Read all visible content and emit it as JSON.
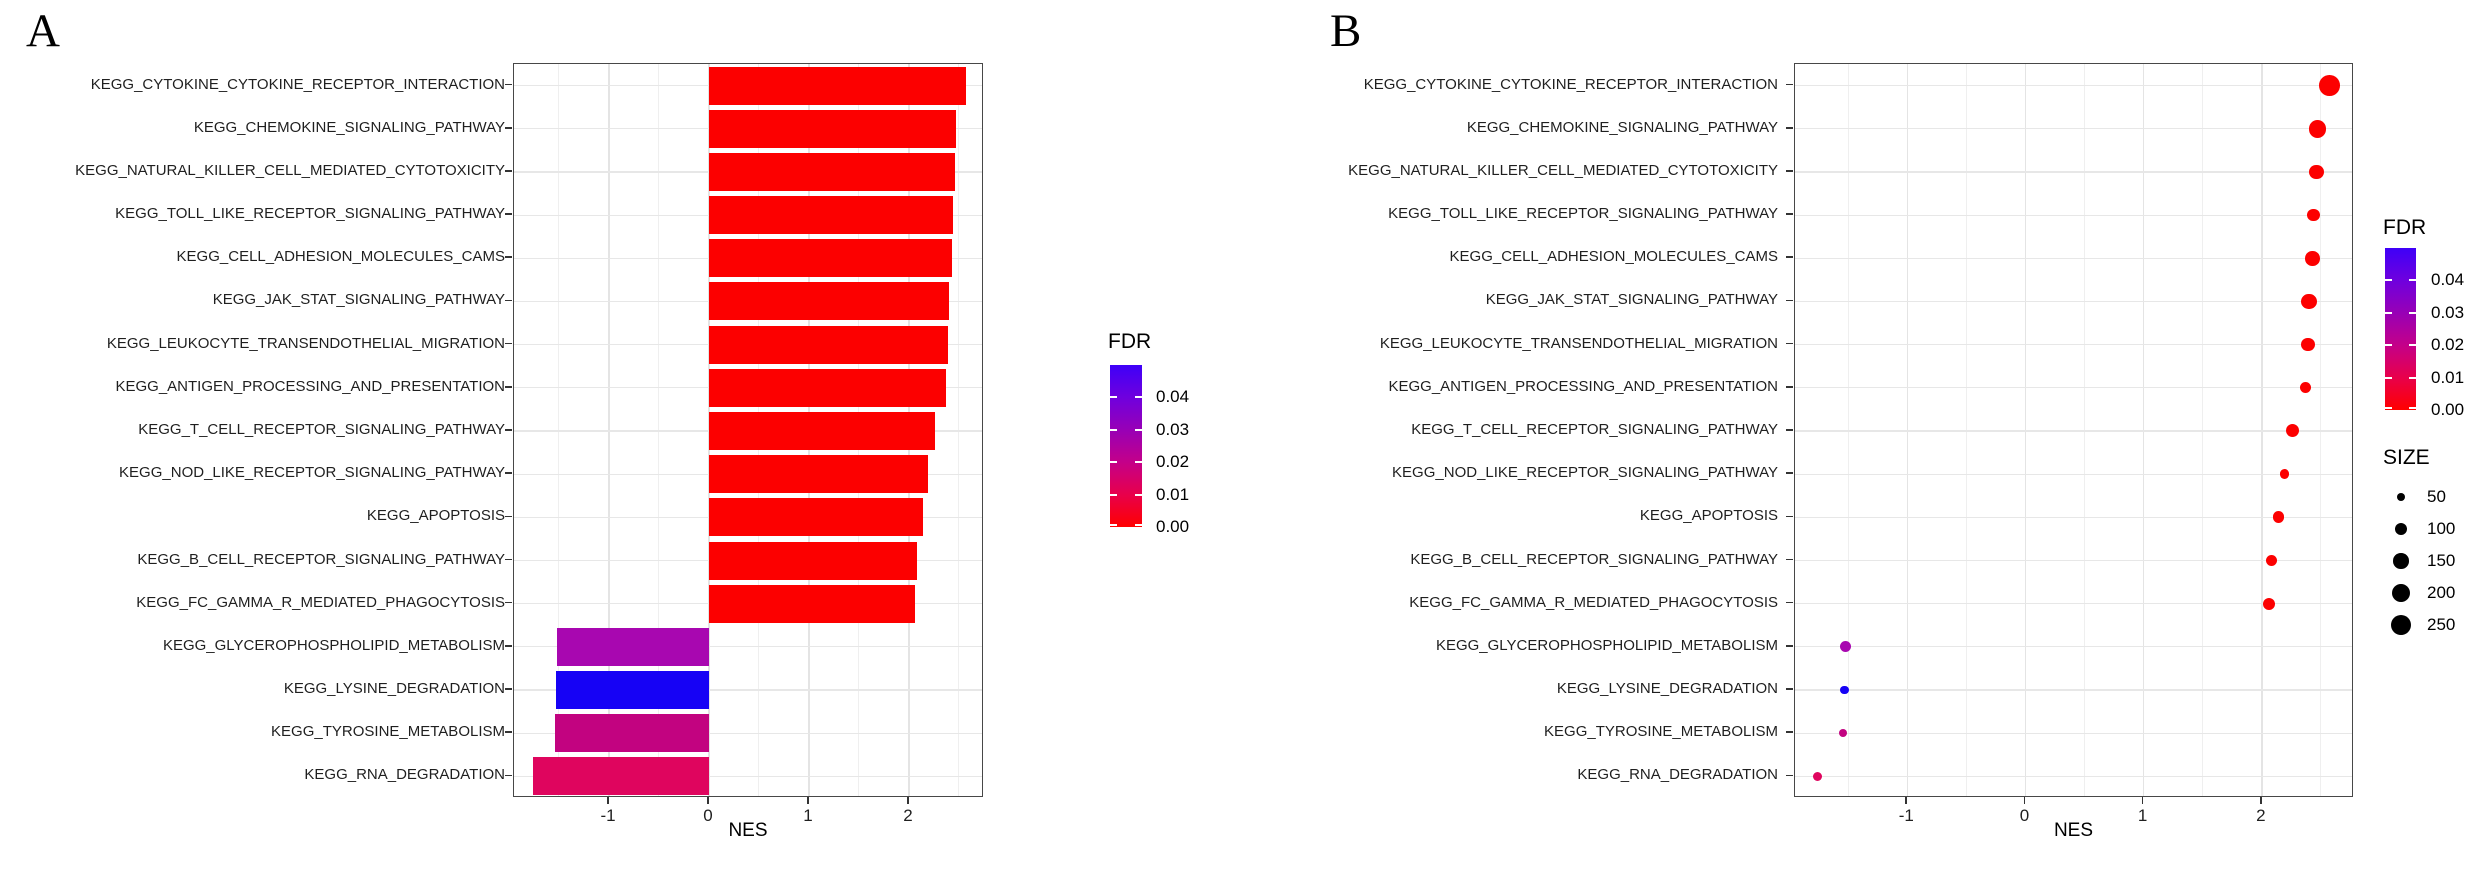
{
  "panels": {
    "A": {
      "letter": "A"
    },
    "B": {
      "letter": "B"
    }
  },
  "colors": {
    "positive_red": "#fc0000",
    "grid_major": "#e4e4e4",
    "grid_minor": "#efefef",
    "panel_border": "#474747",
    "legend_dot_black": "#000000"
  },
  "chart_data": [
    {
      "type": "bar",
      "panel": "A",
      "orientation": "horizontal",
      "title": "",
      "xlabel": "NES",
      "ylabel": "",
      "xlim": [
        -1.95,
        2.75
      ],
      "grid": true,
      "xticks": [
        {
          "label": "-1",
          "value": -1
        },
        {
          "label": "0",
          "value": 0
        },
        {
          "label": "1",
          "value": 1
        },
        {
          "label": "2",
          "value": 2
        }
      ],
      "categories": [
        "KEGG_CYTOKINE_CYTOKINE_RECEPTOR_INTERACTION",
        "KEGG_CHEMOKINE_SIGNALING_PATHWAY",
        "KEGG_NATURAL_KILLER_CELL_MEDIATED_CYTOTOXICITY",
        "KEGG_TOLL_LIKE_RECEPTOR_SIGNALING_PATHWAY",
        "KEGG_CELL_ADHESION_MOLECULES_CAMS",
        "KEGG_JAK_STAT_SIGNALING_PATHWAY",
        "KEGG_LEUKOCYTE_TRANSENDOTHELIAL_MIGRATION",
        "KEGG_ANTIGEN_PROCESSING_AND_PRESENTATION",
        "KEGG_T_CELL_RECEPTOR_SIGNALING_PATHWAY",
        "KEGG_NOD_LIKE_RECEPTOR_SIGNALING_PATHWAY",
        "KEGG_APOPTOSIS",
        "KEGG_B_CELL_RECEPTOR_SIGNALING_PATHWAY",
        "KEGG_FC_GAMMA_R_MEDIATED_PHAGOCYTOSIS",
        "KEGG_GLYCEROPHOSPHOLIPID_METABOLISM",
        "KEGG_LYSINE_DEGRADATION",
        "KEGG_TYROSINE_METABOLISM",
        "KEGG_RNA_DEGRADATION"
      ],
      "values": [
        2.57,
        2.47,
        2.46,
        2.44,
        2.43,
        2.4,
        2.39,
        2.37,
        2.26,
        2.19,
        2.14,
        2.08,
        2.06,
        -1.52,
        -1.53,
        -1.54,
        -1.76
      ],
      "fdr": [
        0.0,
        0.0,
        0.0,
        0.0,
        0.0,
        0.0,
        0.0,
        0.0,
        0.0,
        0.0,
        0.0,
        0.0,
        0.0,
        0.034,
        0.047,
        0.021,
        0.013
      ],
      "point_colors": [
        "#fc0000",
        "#fc0000",
        "#fc0000",
        "#fc0000",
        "#fc0000",
        "#fc0000",
        "#fc0000",
        "#fc0000",
        "#fc0000",
        "#fc0000",
        "#fc0000",
        "#fc0000",
        "#fc0000",
        "#a807b0",
        "#1602f5",
        "#c20380",
        "#df055e"
      ],
      "legend_fdr": {
        "title": "FDR",
        "domain": [
          0.0,
          0.05
        ],
        "ticks": [
          {
            "label": "0.04",
            "value": 0.04
          },
          {
            "label": "0.03",
            "value": 0.03
          },
          {
            "label": "0.02",
            "value": 0.02
          },
          {
            "label": "0.01",
            "value": 0.01
          },
          {
            "label": "0.00",
            "value": 0.0
          }
        ],
        "gradient_bottom_to_top": [
          "#ff0000",
          "#e8004b",
          "#c40089",
          "#9800b6",
          "#6f00de",
          "#3e00f8"
        ]
      }
    },
    {
      "type": "scatter",
      "panel": "B",
      "title": "",
      "xlabel": "NES",
      "ylabel": "",
      "xlim": [
        -1.95,
        2.78
      ],
      "grid": true,
      "xticks": [
        {
          "label": "-1",
          "value": -1
        },
        {
          "label": "0",
          "value": 0
        },
        {
          "label": "1",
          "value": 1
        },
        {
          "label": "2",
          "value": 2
        }
      ],
      "categories": [
        "KEGG_CYTOKINE_CYTOKINE_RECEPTOR_INTERACTION",
        "KEGG_CHEMOKINE_SIGNALING_PATHWAY",
        "KEGG_NATURAL_KILLER_CELL_MEDIATED_CYTOTOXICITY",
        "KEGG_TOLL_LIKE_RECEPTOR_SIGNALING_PATHWAY",
        "KEGG_CELL_ADHESION_MOLECULES_CAMS",
        "KEGG_JAK_STAT_SIGNALING_PATHWAY",
        "KEGG_LEUKOCYTE_TRANSENDOTHELIAL_MIGRATION",
        "KEGG_ANTIGEN_PROCESSING_AND_PRESENTATION",
        "KEGG_T_CELL_RECEPTOR_SIGNALING_PATHWAY",
        "KEGG_NOD_LIKE_RECEPTOR_SIGNALING_PATHWAY",
        "KEGG_APOPTOSIS",
        "KEGG_B_CELL_RECEPTOR_SIGNALING_PATHWAY",
        "KEGG_FC_GAMMA_R_MEDIATED_PHAGOCYTOSIS",
        "KEGG_GLYCEROPHOSPHOLIPID_METABOLISM",
        "KEGG_LYSINE_DEGRADATION",
        "KEGG_TYROSINE_METABOLISM",
        "KEGG_RNA_DEGRADATION"
      ],
      "values": [
        2.57,
        2.47,
        2.46,
        2.44,
        2.43,
        2.4,
        2.39,
        2.37,
        2.26,
        2.19,
        2.14,
        2.08,
        2.06,
        -1.52,
        -1.53,
        -1.54,
        -1.76
      ],
      "sizes": [
        265,
        190,
        135,
        100,
        130,
        155,
        115,
        80,
        105,
        55,
        85,
        75,
        95,
        75,
        45,
        40,
        57
      ],
      "fdr": [
        0.0,
        0.0,
        0.0,
        0.0,
        0.0,
        0.0,
        0.0,
        0.0,
        0.0,
        0.0,
        0.0,
        0.0,
        0.0,
        0.034,
        0.047,
        0.021,
        0.013
      ],
      "point_colors": [
        "#fc0000",
        "#fc0000",
        "#fc0000",
        "#fc0000",
        "#fc0000",
        "#fc0000",
        "#fc0000",
        "#fc0000",
        "#fc0000",
        "#fc0000",
        "#fc0000",
        "#fc0000",
        "#fc0000",
        "#a807b0",
        "#1602f5",
        "#c20380",
        "#df055e"
      ],
      "legend_fdr": {
        "title": "FDR",
        "domain": [
          0.0,
          0.05
        ],
        "ticks": [
          {
            "label": "0.04",
            "value": 0.04
          },
          {
            "label": "0.03",
            "value": 0.03
          },
          {
            "label": "0.02",
            "value": 0.02
          },
          {
            "label": "0.01",
            "value": 0.01
          },
          {
            "label": "0.00",
            "value": 0.0
          }
        ],
        "gradient_bottom_to_top": [
          "#ff0000",
          "#e8004b",
          "#c40089",
          "#9800b6",
          "#6f00de",
          "#3e00f8"
        ]
      },
      "legend_size": {
        "title": "SIZE",
        "entries": [
          {
            "label": "50",
            "value": 50
          },
          {
            "label": "100",
            "value": 100
          },
          {
            "label": "150",
            "value": 150
          },
          {
            "label": "200",
            "value": 200
          },
          {
            "label": "250",
            "value": 250
          }
        ]
      }
    }
  ]
}
